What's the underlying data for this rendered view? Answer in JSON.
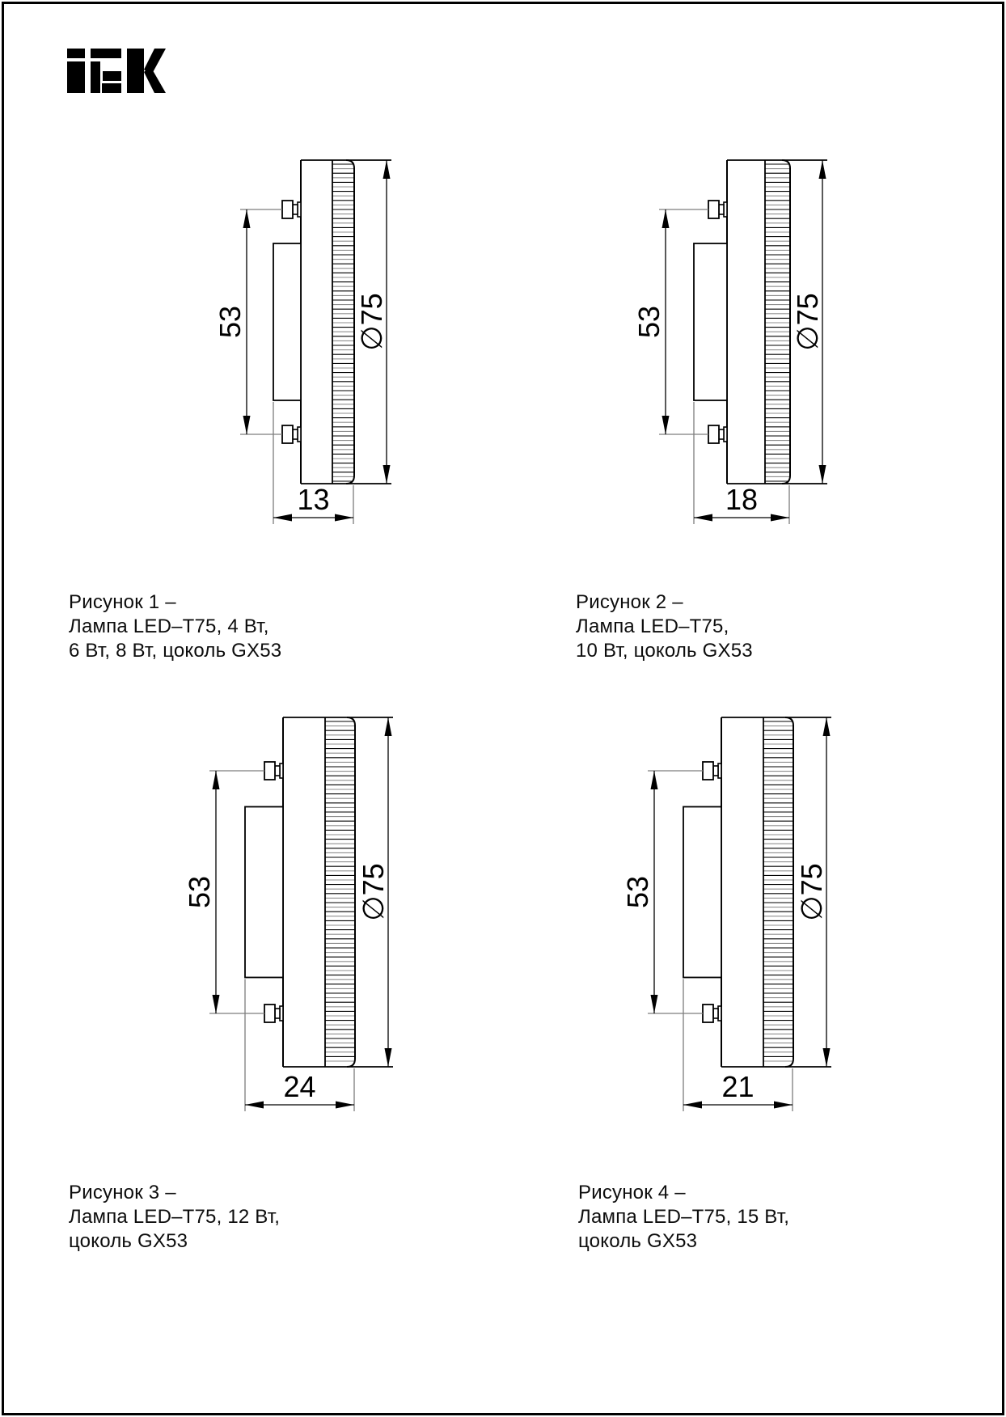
{
  "brand": "IEK",
  "figures": [
    {
      "caption_lines": [
        "Рисунок 1 –",
        "Лампа LED–T75, 4 Вт,",
        "6 Вт, 8 Вт, цоколь GX53"
      ],
      "dims": {
        "pin_spacing": "53",
        "diameter": "∅75",
        "thickness": "13"
      }
    },
    {
      "caption_lines": [
        "Рисунок 2 –",
        "Лампа LED–T75,",
        "10 Вт, цоколь GX53"
      ],
      "dims": {
        "pin_spacing": "53",
        "diameter": "∅75",
        "thickness": "18"
      }
    },
    {
      "caption_lines": [
        "Рисунок 3 –",
        "Лампа LED–T75, 12 Вт,",
        "цоколь GX53"
      ],
      "dims": {
        "pin_spacing": "53",
        "diameter": "∅75",
        "thickness": "24"
      }
    },
    {
      "caption_lines": [
        "Рисунок 4 –",
        "Лампа LED–T75, 15 Вт,",
        "цоколь GX53"
      ],
      "dims": {
        "pin_spacing": "53",
        "diameter": "∅75",
        "thickness": "21"
      }
    }
  ]
}
